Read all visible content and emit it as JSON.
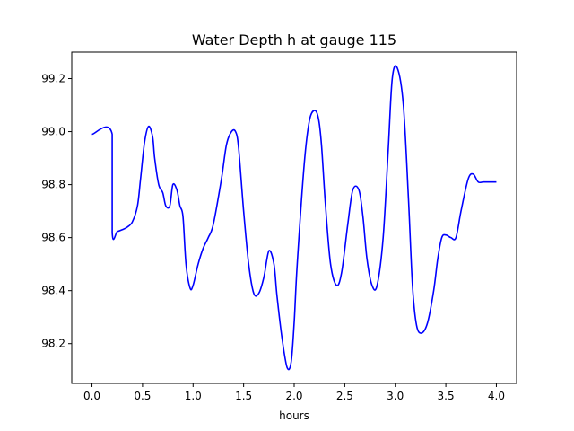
{
  "chart_data": {
    "type": "line",
    "title": "Water Depth h at gauge 115",
    "xlabel": "hours",
    "ylabel": "",
    "xlim": [
      -0.2,
      4.2
    ],
    "ylim": [
      98.05,
      99.3
    ],
    "xticks": [
      0.0,
      0.5,
      1.0,
      1.5,
      2.0,
      2.5,
      3.0,
      3.5,
      4.0
    ],
    "xtick_labels": [
      "0.0",
      "0.5",
      "1.0",
      "1.5",
      "2.0",
      "2.5",
      "3.0",
      "3.5",
      "4.0"
    ],
    "yticks": [
      98.2,
      98.4,
      98.6,
      98.8,
      99.0,
      99.2
    ],
    "ytick_labels": [
      "98.2",
      "98.4",
      "98.6",
      "98.8",
      "99.0",
      "99.2"
    ],
    "grid": false,
    "series": [
      {
        "color": "#0000ff",
        "x": [
          0.0,
          0.2,
          0.2001,
          0.25,
          0.3,
          0.35,
          0.4,
          0.45,
          0.48,
          0.52,
          0.56,
          0.6,
          0.62,
          0.66,
          0.7,
          0.73,
          0.77,
          0.8,
          0.84,
          0.87,
          0.9,
          0.93,
          0.97,
          1.0,
          1.05,
          1.1,
          1.15,
          1.2,
          1.28,
          1.33,
          1.38,
          1.42,
          1.45,
          1.5,
          1.55,
          1.6,
          1.65,
          1.7,
          1.75,
          1.8,
          1.83,
          1.88,
          1.93,
          1.97,
          2.0,
          2.03,
          2.1,
          2.15,
          2.2,
          2.24,
          2.27,
          2.31,
          2.36,
          2.42,
          2.47,
          2.53,
          2.58,
          2.64,
          2.68,
          2.72,
          2.77,
          2.82,
          2.88,
          2.93,
          2.97,
          3.02,
          3.08,
          3.13,
          3.17,
          3.21,
          3.26,
          3.32,
          3.38,
          3.42,
          3.46,
          3.5,
          3.55,
          3.6,
          3.65,
          3.72,
          3.77,
          3.82,
          3.87,
          3.92,
          3.96,
          4.0
        ],
        "y": [
          98.99,
          98.99,
          98.62,
          98.623,
          98.63,
          98.64,
          98.66,
          98.72,
          98.82,
          98.96,
          99.02,
          98.98,
          98.9,
          98.8,
          98.77,
          98.72,
          98.72,
          98.8,
          98.78,
          98.72,
          98.68,
          98.5,
          98.41,
          98.42,
          98.5,
          98.56,
          98.6,
          98.65,
          98.82,
          98.95,
          99.0,
          99.0,
          98.94,
          98.7,
          98.5,
          98.39,
          98.39,
          98.45,
          98.55,
          98.5,
          98.38,
          98.22,
          98.11,
          98.13,
          98.28,
          98.5,
          98.88,
          99.04,
          99.08,
          99.05,
          98.95,
          98.72,
          98.5,
          98.42,
          98.47,
          98.65,
          98.78,
          98.78,
          98.68,
          98.52,
          98.42,
          98.42,
          98.6,
          98.93,
          99.2,
          99.24,
          99.1,
          98.75,
          98.42,
          98.27,
          98.24,
          98.28,
          98.4,
          98.52,
          98.6,
          98.61,
          98.6,
          98.6,
          98.7,
          98.82,
          98.84,
          98.81,
          98.81,
          98.81,
          98.81,
          98.81
        ]
      }
    ]
  }
}
